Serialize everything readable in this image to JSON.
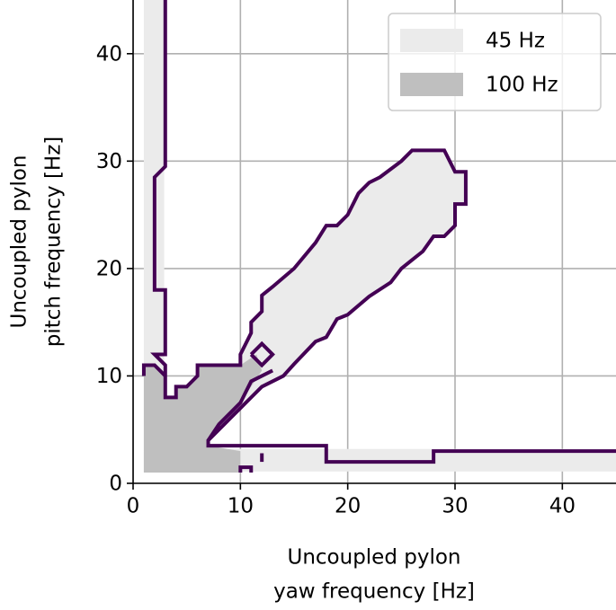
{
  "chart_data": {
    "type": "contour",
    "xlabel": [
      "Uncoupled pylon",
      "yaw frequency [Hz]"
    ],
    "ylabel": [
      "Uncoupled pylon",
      "pitch frequency [Hz]"
    ],
    "xlim": [
      0,
      45
    ],
    "ylim": [
      0,
      45
    ],
    "xticks": [
      0,
      10,
      20,
      30,
      40
    ],
    "yticks": [
      0,
      10,
      20,
      30,
      40
    ],
    "grid": true,
    "legend": "upper right",
    "regions": [
      {
        "name": "45 Hz",
        "color": "#ebebeb",
        "polygons": [
          {
            "x": [
              1,
              2.9,
              2.9,
              1
            ],
            "y": [
              1,
              1,
              45,
              45
            ]
          },
          {
            "x": [
              1,
              45,
              45,
              1
            ],
            "y": [
              1.1,
              1.1,
              3.2,
              3.2
            ]
          },
          {
            "x": [
              7,
              10,
              10,
              11,
              11,
              12,
              12,
              13,
              15,
              17,
              18,
              19,
              20,
              21,
              22,
              23,
              25,
              26,
              29,
              30,
              31,
              31,
              30,
              30,
              29,
              28,
              27,
              26,
              25,
              24,
              22,
              20,
              19,
              18,
              17,
              15,
              14,
              12,
              11,
              10,
              9,
              8
            ],
            "y": [
              4,
              11,
              12,
              14,
              15,
              16,
              17.5,
              18.3,
              20,
              22.4,
              24,
              24,
              25,
              27,
              28,
              28.5,
              30,
              31,
              31,
              29,
              29,
              26,
              26,
              24,
              23,
              23,
              21.6,
              20.8,
              20,
              18.7,
              17.4,
              15.7,
              15.3,
              13.6,
              13.2,
              11.1,
              10,
              9,
              8,
              7,
              6,
              5
            ]
          }
        ]
      },
      {
        "name": "100 Hz",
        "color": "#bfbfbf",
        "polygons": [
          {
            "x": [
              1,
              10,
              10,
              7,
              7,
              9,
              10,
              11,
              12,
              11.5,
              10,
              6,
              6,
              5,
              4,
              4,
              3,
              3,
              2,
              1
            ],
            "y": [
              1,
              1,
              3,
              3.5,
              4,
              6,
              7.5,
              9,
              10.5,
              12,
              11,
              11,
              10,
              9,
              9,
              8,
              8,
              10,
              11,
              11
            ]
          }
        ]
      }
    ],
    "contour": {
      "color": "#440154",
      "lines": [
        {
          "x": [
            3,
            3,
            2,
            2,
            3,
            3,
            2,
            3,
            3,
            4,
            4,
            5,
            6,
            6,
            10,
            10,
            11,
            11,
            12,
            12,
            13,
            15,
            17,
            18,
            19,
            20,
            21,
            22,
            23,
            25,
            26,
            29,
            30,
            31,
            31,
            30,
            30,
            29,
            28,
            27,
            26,
            25,
            24,
            22,
            20,
            19,
            18,
            17,
            15,
            14,
            12,
            11,
            10,
            9,
            8,
            7,
            7,
            18,
            18,
            28,
            28,
            45
          ],
          "y": [
            45,
            29.5,
            28.5,
            18,
            18,
            12,
            12,
            11,
            8,
            8,
            9,
            9,
            10,
            11,
            11,
            12,
            14,
            15,
            16,
            17.5,
            18.3,
            20,
            22.4,
            24,
            24,
            25,
            27,
            28,
            28.5,
            30,
            31,
            31,
            29,
            29,
            26,
            26,
            24,
            23,
            23,
            21.6,
            20.8,
            20,
            18.7,
            17.4,
            15.7,
            15.3,
            13.6,
            13.2,
            11.1,
            10,
            9,
            8,
            7,
            6,
            5,
            4,
            3.5,
            3.5,
            2,
            2,
            3,
            3
          ]
        },
        {
          "x": [
            1,
            1,
            2,
            3
          ],
          "y": [
            10,
            11,
            11,
            10
          ]
        },
        {
          "x": [
            7,
            8,
            9,
            10,
            11,
            12,
            13
          ],
          "y": [
            4,
            5.5,
            6.5,
            7.5,
            9.5,
            10,
            10.5
          ]
        },
        {
          "x": [
            11,
            12,
            13,
            12,
            11
          ],
          "y": [
            12,
            13,
            12,
            11,
            12
          ]
        },
        {
          "x": [
            10,
            10,
            11,
            11
          ],
          "y": [
            1,
            1.5,
            1.5,
            1
          ]
        },
        {
          "x": [
            12,
            12
          ],
          "y": [
            2,
            2.8
          ]
        }
      ]
    }
  }
}
